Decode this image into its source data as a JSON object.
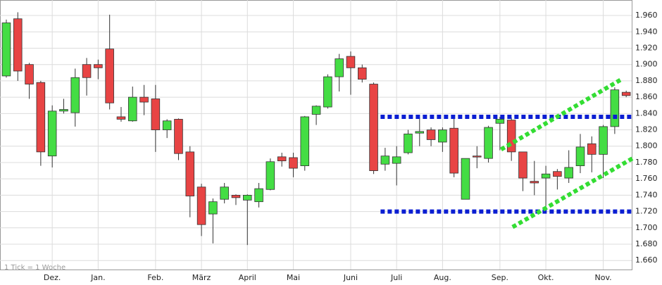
{
  "chart_data": {
    "type": "candlestick",
    "note": "1 Tick = 1 Woche",
    "up_color": "#44dd44",
    "down_color": "#e84444",
    "grid": true,
    "open": [
      1.886,
      1.956,
      1.9,
      1.878,
      1.788,
      1.843,
      1.841,
      1.9,
      1.9,
      1.919,
      1.836,
      1.831,
      1.86,
      1.858,
      1.82,
      1.833,
      1.793,
      1.75,
      1.717,
      1.735,
      1.74,
      1.734,
      1.732,
      1.747,
      1.787,
      1.786,
      1.776,
      1.839,
      1.848,
      1.885,
      1.91,
      1.896,
      1.876,
      1.778,
      1.779,
      1.792,
      1.816,
      1.82,
      1.805,
      1.822,
      1.735,
      1.788,
      1.785,
      1.828,
      1.832,
      1.793,
      1.757,
      1.761,
      1.769,
      1.761,
      1.776,
      1.803,
      1.79,
      1.824,
      1.866
    ],
    "high": [
      1.955,
      1.964,
      1.902,
      1.88,
      1.85,
      1.858,
      1.895,
      1.908,
      1.906,
      1.961,
      1.848,
      1.873,
      1.875,
      1.875,
      1.833,
      1.834,
      1.8,
      1.754,
      1.736,
      1.755,
      1.741,
      1.741,
      1.755,
      1.785,
      1.792,
      1.792,
      1.837,
      1.85,
      1.888,
      1.913,
      1.916,
      1.9,
      1.878,
      1.798,
      1.8,
      1.82,
      1.835,
      1.823,
      1.823,
      1.836,
      1.785,
      1.8,
      1.825,
      1.836,
      1.835,
      1.793,
      1.782,
      1.776,
      1.772,
      1.795,
      1.815,
      1.812,
      1.826,
      1.872,
      1.868
    ],
    "low": [
      1.884,
      1.88,
      1.858,
      1.776,
      1.774,
      1.84,
      1.824,
      1.862,
      1.882,
      1.845,
      1.83,
      1.83,
      1.838,
      1.793,
      1.81,
      1.783,
      1.713,
      1.69,
      1.681,
      1.73,
      1.728,
      1.679,
      1.725,
      1.746,
      1.775,
      1.762,
      1.77,
      1.826,
      1.846,
      1.867,
      1.863,
      1.878,
      1.766,
      1.77,
      1.752,
      1.79,
      1.8,
      1.8,
      1.793,
      1.762,
      1.735,
      1.773,
      1.78,
      1.795,
      1.782,
      1.745,
      1.74,
      1.72,
      1.747,
      1.755,
      1.767,
      1.768,
      1.761,
      1.815,
      1.86
    ],
    "close": [
      1.951,
      1.892,
      1.876,
      1.793,
      1.843,
      1.845,
      1.884,
      1.884,
      1.896,
      1.853,
      1.833,
      1.86,
      1.854,
      1.82,
      1.831,
      1.791,
      1.739,
      1.704,
      1.732,
      1.75,
      1.737,
      1.74,
      1.748,
      1.781,
      1.782,
      1.773,
      1.836,
      1.849,
      1.885,
      1.907,
      1.896,
      1.882,
      1.77,
      1.788,
      1.787,
      1.815,
      1.818,
      1.808,
      1.82,
      1.767,
      1.785,
      1.787,
      1.823,
      1.833,
      1.793,
      1.761,
      1.755,
      1.766,
      1.763,
      1.774,
      1.799,
      1.79,
      1.824,
      1.869,
      1.862
    ],
    "xlim": [
      -0.55,
      54.48
    ],
    "xticks": [
      {
        "value": 4,
        "label": "Dez."
      },
      {
        "value": 8,
        "label": "Jan."
      },
      {
        "value": 13,
        "label": "Feb."
      },
      {
        "value": 17,
        "label": "März"
      },
      {
        "value": 21,
        "label": "April"
      },
      {
        "value": 25,
        "label": "Mai"
      },
      {
        "value": 30,
        "label": "Juni"
      },
      {
        "value": 34,
        "label": "Juli"
      },
      {
        "value": 38,
        "label": "Aug."
      },
      {
        "value": 43,
        "label": "Sep."
      },
      {
        "value": 47,
        "label": "Okt."
      },
      {
        "value": 52,
        "label": "Nov."
      }
    ],
    "ylim": [
      1.649,
      1.979
    ],
    "yticks": [
      {
        "value": 1.66,
        "label": "1.660"
      },
      {
        "value": 1.68,
        "label": "1.680"
      },
      {
        "value": 1.7,
        "label": "1.700"
      },
      {
        "value": 1.72,
        "label": "1.720"
      },
      {
        "value": 1.74,
        "label": "1.740"
      },
      {
        "value": 1.76,
        "label": "1.760"
      },
      {
        "value": 1.78,
        "label": "1.780"
      },
      {
        "value": 1.8,
        "label": "1.800"
      },
      {
        "value": 1.82,
        "label": "1.820"
      },
      {
        "value": 1.84,
        "label": "1.840"
      },
      {
        "value": 1.86,
        "label": "1.860"
      },
      {
        "value": 1.88,
        "label": "1.880"
      },
      {
        "value": 1.9,
        "label": "1.900"
      },
      {
        "value": 1.92,
        "label": "1.920"
      },
      {
        "value": 1.94,
        "label": "1.940"
      },
      {
        "value": 1.96,
        "label": "1.960"
      }
    ],
    "lines": [
      {
        "x": [
          32.6,
          54.7
        ],
        "y": [
          1.836,
          1.836
        ],
        "color": "#0a1ed2"
      },
      {
        "x": [
          32.6,
          54.7
        ],
        "y": [
          1.72,
          1.72
        ],
        "color": "#0a1ed2"
      },
      {
        "x": [
          43.1,
          53.6
        ],
        "y": [
          1.796,
          1.882
        ],
        "color": "#33dd33"
      },
      {
        "x": [
          44.1,
          54.7
        ],
        "y": [
          1.701,
          1.786
        ],
        "color": "#33dd33"
      }
    ]
  }
}
